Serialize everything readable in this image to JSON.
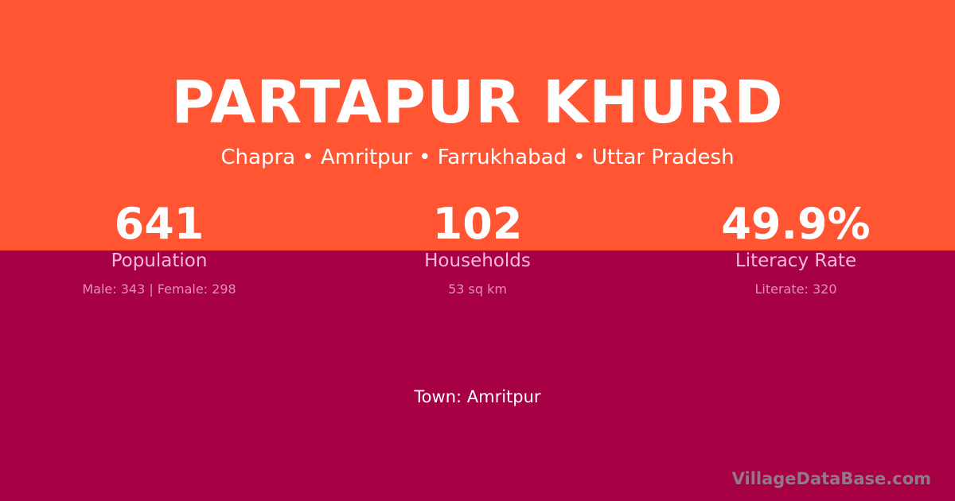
{
  "title": "PARTAPUR KHURD",
  "subtitle": "Chapra • Amritpur • Farrukhabad • Uttar Pradesh",
  "stats": [
    {
      "value": "641",
      "label": "Population",
      "detail": "Male: 343 | Female: 298"
    },
    {
      "value": "102",
      "label": "Households",
      "detail": "53 sq km"
    },
    {
      "value": "49.9%",
      "label": "Literacy Rate",
      "detail": "Literate: 320"
    }
  ],
  "town": "Town: Amritpur",
  "brand": "VillageDataBase.com",
  "colors": {
    "top": "#ff5533",
    "bottom": "#a80044"
  }
}
